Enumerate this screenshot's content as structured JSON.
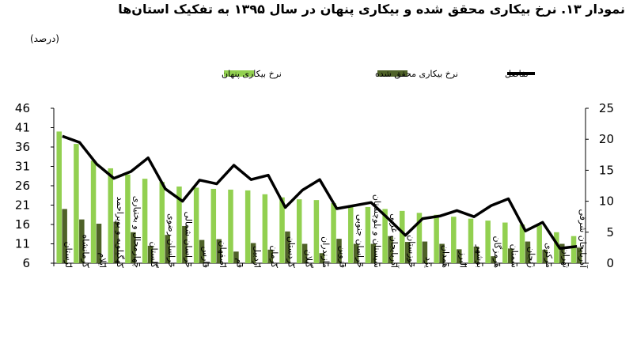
{
  "title": "نمودار ۱۳. نرخ بیکاری محقق شده و بیکاری پنهان در سال ۱۳۹۵ به تفکیک استان‌ها",
  "unit_note": "(درصد)",
  "chart_data": {
    "type": "bar",
    "title": "نمودار ۱۳. نرخ بیکاری محقق شده و بیکاری پنهان در سال ۱۳۹۵ به تفکیک استان‌ها",
    "unit": "(درصد)",
    "categories": [
      "لرستان",
      "کرمانشاه",
      "ایلام",
      "کهگیلویه و بویراحمد",
      "چهارمحال و بختیاری",
      "گلستان",
      "خراسان رضوی",
      "خراسان شمالی",
      "فارس",
      "اصفهان",
      "قم",
      "اردبیل",
      "کرمان",
      "کردستان",
      "گیلان",
      "مازندران",
      "قزوین",
      "خراسان جنوبی",
      "سیستان و بلوچستان",
      "آذربایجان غربی",
      "خوزستان",
      "یزد",
      "همدان",
      "البرز",
      "بوشهر",
      "هرمزگان",
      "سمنان",
      "زنجان",
      "مرکزی",
      "تهران",
      "آذربایجان شرقی"
    ],
    "series": [
      {
        "name": "نرخ بیکاری پنهان",
        "axis": "left",
        "color": "#92d050",
        "values": [
          40,
          36.8,
          32.5,
          30.5,
          28.9,
          27.8,
          27,
          25.8,
          25.5,
          25.2,
          25,
          24.8,
          23.8,
          23,
          22.5,
          22.3,
          21.5,
          21,
          20.5,
          20,
          19.5,
          19,
          18.5,
          18,
          17.5,
          17,
          16.5,
          16,
          15.8,
          14,
          13
        ]
      },
      {
        "name": "نرخ بیکاری محقق شده",
        "axis": "left",
        "color": "#4f6228",
        "values": [
          20,
          17.3,
          16.2,
          16.7,
          14,
          10.5,
          13.3,
          15.6,
          12,
          12.2,
          9,
          11.2,
          9.5,
          14.2,
          11,
          8.6,
          12.3,
          11,
          11,
          13,
          11.5,
          11.6,
          11,
          9.6,
          10.3,
          7.8,
          9.8,
          11.6,
          9.5,
          11,
          10
        ]
      },
      {
        "name": "تفاضل",
        "axis": "right",
        "type": "line",
        "color": "#000000",
        "values": [
          20.5,
          19.5,
          16,
          13.7,
          14.8,
          17,
          12,
          10,
          13.4,
          12.8,
          15.8,
          13.5,
          14.2,
          9,
          11.8,
          13.5,
          8.8,
          9.3,
          9.8,
          7.2,
          4.5,
          7.2,
          7.6,
          8.5,
          7.5,
          9.3,
          10.4,
          5.2,
          6.6,
          2.4,
          2.7
        ]
      }
    ],
    "y_left": {
      "range": [
        6,
        46
      ],
      "ticks": [
        6,
        11,
        16,
        21,
        26,
        31,
        36,
        41,
        46
      ]
    },
    "y_right": {
      "range": [
        0,
        25
      ],
      "ticks": [
        0,
        5,
        10,
        15,
        20,
        25
      ]
    },
    "grid": false,
    "legend": "top-center"
  }
}
